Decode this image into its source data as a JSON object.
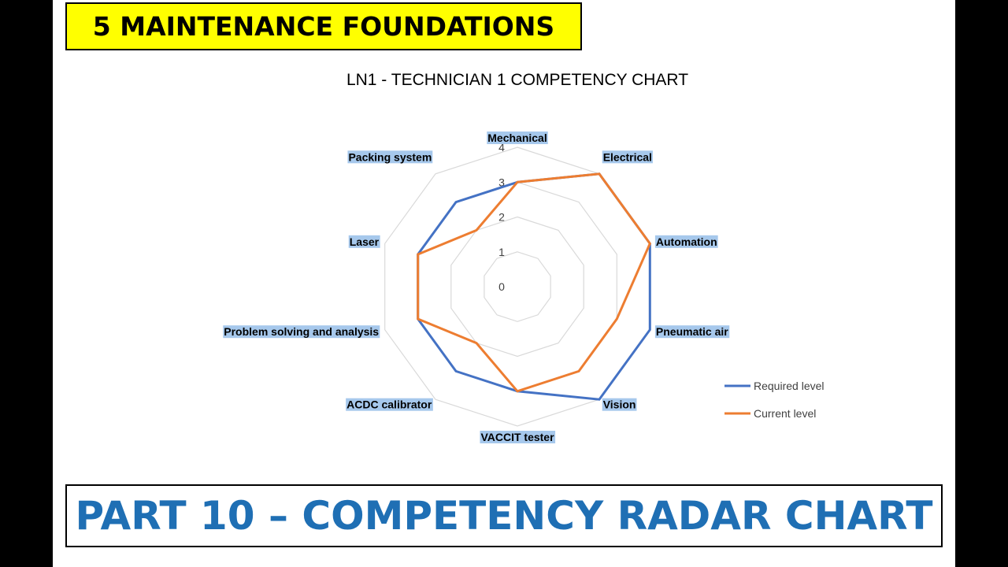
{
  "slide": {
    "header": "5 MAINTENANCE FOUNDATIONS",
    "footer": "PART 10 – COMPETENCY RADAR CHART"
  },
  "chart_data": {
    "type": "radar",
    "title": "LN1 - TECHNICIAN 1 COMPETENCY CHART",
    "categories": [
      "Mechanical",
      "Electrical",
      "Automation",
      "Pneumatic air",
      "Vision",
      "VACCIT tester",
      "ACDC calibrator",
      "Problem solving and analysis",
      "Laser",
      "Packing system"
    ],
    "rlim": [
      0,
      4
    ],
    "ticks": [
      0,
      1,
      2,
      3,
      4
    ],
    "grid": true,
    "legend_position": "right",
    "series": [
      {
        "name": "Required level",
        "color": "#4472c4",
        "values": [
          3,
          4,
          4,
          4,
          4,
          3,
          3,
          3,
          3,
          3
        ]
      },
      {
        "name": "Current level",
        "color": "#ed7d31",
        "values": [
          3,
          4,
          4,
          3,
          3,
          3,
          2,
          3,
          3,
          2
        ]
      }
    ]
  }
}
